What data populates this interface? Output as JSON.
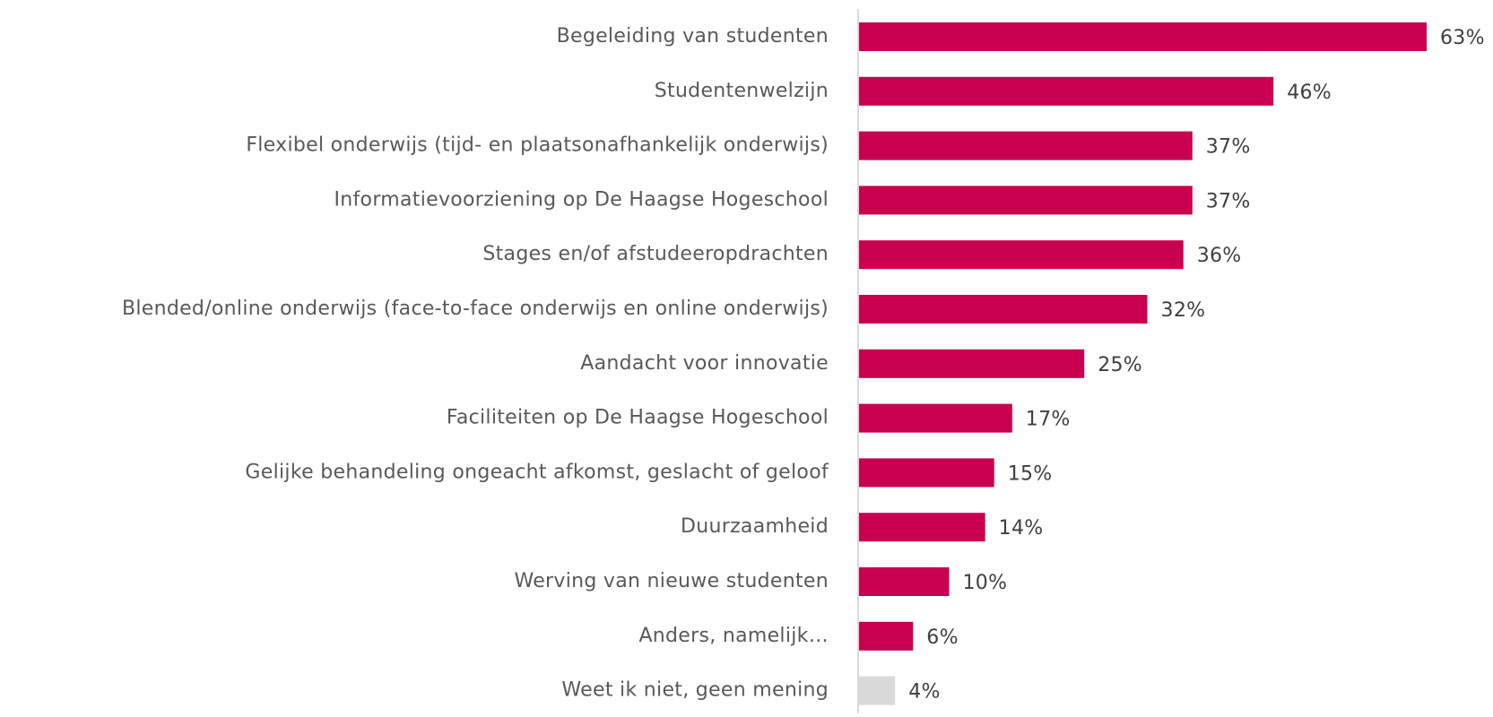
{
  "chart_data": {
    "type": "bar",
    "orientation": "horizontal",
    "categories": [
      "Begeleiding van studenten",
      "Studentenwelzijn",
      "Flexibel onderwijs (tijd- en plaatsonafhankelijk onderwijs)",
      "Informatievoorziening op De Haagse Hogeschool",
      "Stages en/of afstudeeropdrachten",
      "Blended/online onderwijs (face-to-face onderwijs en online onderwijs)",
      "Aandacht voor innovatie",
      "Faciliteiten op De Haagse Hogeschool",
      "Gelijke behandeling ongeacht afkomst, geslacht of geloof",
      "Duurzaamheid",
      "Werving van nieuwe studenten",
      "Anders, namelijk…",
      "Weet ik niet, geen mening"
    ],
    "values": [
      63,
      46,
      37,
      37,
      36,
      32,
      25,
      17,
      15,
      14,
      10,
      6,
      4
    ],
    "value_labels": [
      "63%",
      "46%",
      "37%",
      "37%",
      "36%",
      "32%",
      "25%",
      "17%",
      "15%",
      "14%",
      "10%",
      "6%",
      "4%"
    ],
    "colors": [
      "#c8004f",
      "#c8004f",
      "#c8004f",
      "#c8004f",
      "#c8004f",
      "#c8004f",
      "#c8004f",
      "#c8004f",
      "#c8004f",
      "#c8004f",
      "#c8004f",
      "#c8004f",
      "#d9d9d9"
    ],
    "xlim": [
      0,
      63
    ]
  }
}
